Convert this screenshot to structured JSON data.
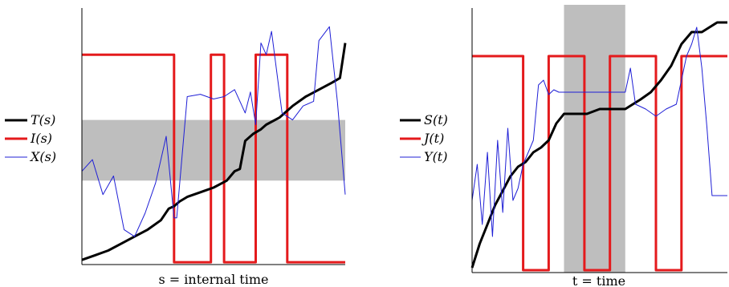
{
  "chart_data": [
    {
      "type": "line",
      "xlabel": "s = internal time",
      "shaded_y_band": [
        0.36,
        0.62
      ],
      "xlim": [
        0,
        1
      ],
      "ylim": [
        0,
        1.1
      ],
      "legend": {
        "placement": "left"
      },
      "series": [
        {
          "name": "T(s)",
          "color": "#000000",
          "x": [
            0.0,
            0.05,
            0.1,
            0.15,
            0.2,
            0.25,
            0.3,
            0.33,
            0.35,
            0.37,
            0.4,
            0.45,
            0.5,
            0.55,
            0.58,
            0.6,
            0.62,
            0.65,
            0.68,
            0.7,
            0.75,
            0.8,
            0.85,
            0.9,
            0.95,
            0.98,
            1.0
          ],
          "y": [
            0.02,
            0.04,
            0.06,
            0.09,
            0.12,
            0.15,
            0.19,
            0.24,
            0.25,
            0.27,
            0.29,
            0.31,
            0.33,
            0.36,
            0.4,
            0.41,
            0.53,
            0.56,
            0.58,
            0.6,
            0.63,
            0.68,
            0.72,
            0.75,
            0.78,
            0.8,
            0.95
          ]
        },
        {
          "name": "I(s)",
          "color": "#e41a1c",
          "x": [
            0.0,
            0.35,
            0.35,
            0.49,
            0.49,
            0.54,
            0.54,
            0.66,
            0.66,
            0.78,
            0.78,
            1.0
          ],
          "y": [
            0.9,
            0.9,
            0.01,
            0.01,
            0.9,
            0.9,
            0.01,
            0.01,
            0.9,
            0.9,
            0.01,
            0.01
          ]
        },
        {
          "name": "X(s)",
          "color": "#1f1fd6",
          "x": [
            0.0,
            0.04,
            0.08,
            0.12,
            0.16,
            0.2,
            0.24,
            0.28,
            0.32,
            0.35,
            0.36,
            0.4,
            0.45,
            0.5,
            0.54,
            0.58,
            0.62,
            0.64,
            0.66,
            0.68,
            0.7,
            0.72,
            0.76,
            0.8,
            0.84,
            0.88,
            0.9,
            0.94,
            0.97,
            1.0
          ],
          "y": [
            0.4,
            0.45,
            0.3,
            0.38,
            0.15,
            0.12,
            0.22,
            0.35,
            0.55,
            0.2,
            0.2,
            0.72,
            0.73,
            0.71,
            0.72,
            0.75,
            0.65,
            0.74,
            0.6,
            0.95,
            0.9,
            1.0,
            0.65,
            0.62,
            0.68,
            0.7,
            0.96,
            1.02,
            0.7,
            0.3
          ]
        }
      ]
    },
    {
      "type": "line",
      "xlabel": "t = time",
      "shaded_x_band": [
        0.36,
        0.6
      ],
      "xlim": [
        0,
        1
      ],
      "ylim": [
        0,
        1.1
      ],
      "legend": {
        "placement": "left"
      },
      "series": [
        {
          "name": "S(t)",
          "color": "#000000",
          "x": [
            0.0,
            0.03,
            0.06,
            0.09,
            0.12,
            0.15,
            0.18,
            0.21,
            0.24,
            0.27,
            0.3,
            0.33,
            0.36,
            0.4,
            0.45,
            0.5,
            0.55,
            0.6,
            0.63,
            0.66,
            0.7,
            0.74,
            0.78,
            0.82,
            0.86,
            0.9,
            0.93,
            0.96,
            1.0
          ],
          "y": [
            0.02,
            0.12,
            0.2,
            0.28,
            0.34,
            0.4,
            0.44,
            0.46,
            0.5,
            0.52,
            0.55,
            0.62,
            0.66,
            0.66,
            0.66,
            0.68,
            0.68,
            0.68,
            0.7,
            0.72,
            0.75,
            0.8,
            0.86,
            0.95,
            1.0,
            1.0,
            1.02,
            1.04,
            1.04
          ]
        },
        {
          "name": "J(t)",
          "color": "#e41a1c",
          "x": [
            0.0,
            0.2,
            0.2,
            0.3,
            0.3,
            0.44,
            0.44,
            0.54,
            0.54,
            0.72,
            0.72,
            0.82,
            0.82,
            1.0
          ],
          "y": [
            0.9,
            0.9,
            0.01,
            0.01,
            0.9,
            0.9,
            0.01,
            0.01,
            0.9,
            0.9,
            0.01,
            0.01,
            0.9,
            0.9
          ]
        },
        {
          "name": "Y(t)",
          "color": "#1f1fd6",
          "x": [
            0.0,
            0.02,
            0.04,
            0.06,
            0.08,
            0.1,
            0.12,
            0.14,
            0.16,
            0.18,
            0.2,
            0.22,
            0.24,
            0.26,
            0.28,
            0.3,
            0.32,
            0.34,
            0.36,
            0.4,
            0.45,
            0.5,
            0.55,
            0.6,
            0.62,
            0.64,
            0.68,
            0.72,
            0.76,
            0.8,
            0.84,
            0.86,
            0.88,
            0.9,
            0.92,
            0.94,
            1.0
          ],
          "y": [
            0.3,
            0.45,
            0.2,
            0.5,
            0.15,
            0.55,
            0.25,
            0.6,
            0.3,
            0.35,
            0.45,
            0.5,
            0.55,
            0.78,
            0.8,
            0.74,
            0.76,
            0.75,
            0.75,
            0.75,
            0.75,
            0.75,
            0.75,
            0.75,
            0.85,
            0.7,
            0.68,
            0.65,
            0.68,
            0.7,
            0.9,
            0.95,
            1.02,
            0.85,
            0.6,
            0.32,
            0.32
          ]
        }
      ]
    }
  ]
}
